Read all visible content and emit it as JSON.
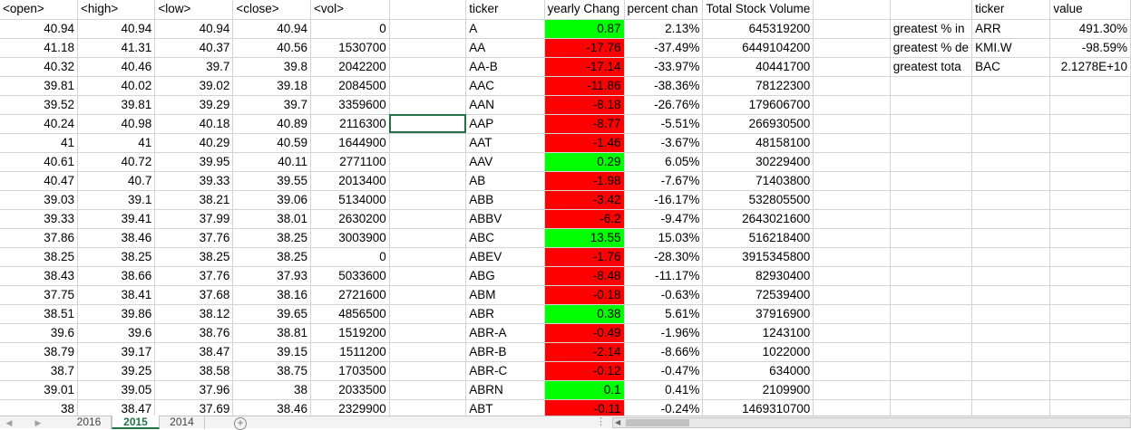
{
  "app": "Spreadsheet",
  "columns": [
    "<open>",
    "<high>",
    "<low>",
    "<close>",
    "<vol>",
    "",
    "ticker",
    "yearly Chang",
    "percent chan",
    "Total Stock Volume",
    "",
    "",
    "ticker",
    "value"
  ],
  "rows": [
    [
      "40.94",
      "40.94",
      "40.94",
      "40.94",
      "0",
      "",
      "A",
      "0.87",
      "2.13%",
      "645319200",
      "",
      "greatest % in",
      "ARR",
      "491.30%"
    ],
    [
      "41.18",
      "41.31",
      "40.37",
      "40.56",
      "1530700",
      "",
      "AA",
      "-17.76",
      "-37.49%",
      "6449104200",
      "",
      "greatest % de",
      "KMI.W",
      "-98.59%"
    ],
    [
      "40.32",
      "40.46",
      "39.7",
      "39.8",
      "2042200",
      "",
      "AA-B",
      "-17.14",
      "-33.97%",
      "40441700",
      "",
      "greatest tota",
      "BAC",
      "2.1278E+10"
    ],
    [
      "39.81",
      "40.02",
      "39.02",
      "39.18",
      "2084500",
      "",
      "AAC",
      "-11.86",
      "-38.36%",
      "78122300",
      "",
      "",
      "",
      ""
    ],
    [
      "39.52",
      "39.81",
      "39.29",
      "39.7",
      "3359600",
      "",
      "AAN",
      "-8.18",
      "-26.76%",
      "179606700",
      "",
      "",
      "",
      ""
    ],
    [
      "40.24",
      "40.98",
      "40.18",
      "40.89",
      "2116300",
      "",
      "AAP",
      "-8.77",
      "-5.51%",
      "266930500",
      "",
      "",
      "",
      ""
    ],
    [
      "41",
      "41",
      "40.29",
      "40.59",
      "1644900",
      "",
      "AAT",
      "-1.46",
      "-3.67%",
      "48158100",
      "",
      "",
      "",
      ""
    ],
    [
      "40.61",
      "40.72",
      "39.95",
      "40.11",
      "2771100",
      "",
      "AAV",
      "0.29",
      "6.05%",
      "30229400",
      "",
      "",
      "",
      ""
    ],
    [
      "40.47",
      "40.7",
      "39.33",
      "39.55",
      "2013400",
      "",
      "AB",
      "-1.98",
      "-7.67%",
      "71403800",
      "",
      "",
      "",
      ""
    ],
    [
      "39.03",
      "39.1",
      "38.21",
      "39.06",
      "5134000",
      "",
      "ABB",
      "-3.42",
      "-16.17%",
      "532805500",
      "",
      "",
      "",
      ""
    ],
    [
      "39.33",
      "39.41",
      "37.99",
      "38.01",
      "2630200",
      "",
      "ABBV",
      "-6.2",
      "-9.47%",
      "2643021600",
      "",
      "",
      "",
      ""
    ],
    [
      "37.86",
      "38.46",
      "37.76",
      "38.25",
      "3003900",
      "",
      "ABC",
      "13.55",
      "15.03%",
      "516218400",
      "",
      "",
      "",
      ""
    ],
    [
      "38.25",
      "38.25",
      "38.25",
      "38.25",
      "0",
      "",
      "ABEV",
      "-1.76",
      "-28.30%",
      "3915345800",
      "",
      "",
      "",
      ""
    ],
    [
      "38.43",
      "38.66",
      "37.76",
      "37.93",
      "5033600",
      "",
      "ABG",
      "-8.48",
      "-11.17%",
      "82930400",
      "",
      "",
      "",
      ""
    ],
    [
      "37.75",
      "38.41",
      "37.68",
      "38.16",
      "2721600",
      "",
      "ABM",
      "-0.18",
      "-0.63%",
      "72539400",
      "",
      "",
      "",
      ""
    ],
    [
      "38.51",
      "39.86",
      "38.12",
      "39.65",
      "4856500",
      "",
      "ABR",
      "0.38",
      "5.61%",
      "37916900",
      "",
      "",
      "",
      ""
    ],
    [
      "39.6",
      "39.6",
      "38.76",
      "38.81",
      "1519200",
      "",
      "ABR-A",
      "-0.49",
      "-1.96%",
      "1243100",
      "",
      "",
      "",
      ""
    ],
    [
      "38.79",
      "39.17",
      "38.47",
      "39.15",
      "1511200",
      "",
      "ABR-B",
      "-2.14",
      "-8.66%",
      "1022000",
      "",
      "",
      "",
      ""
    ],
    [
      "38.7",
      "39.25",
      "38.58",
      "38.75",
      "1703500",
      "",
      "ABR-C",
      "-0.12",
      "-0.47%",
      "634000",
      "",
      "",
      "",
      ""
    ],
    [
      "39.01",
      "39.05",
      "37.96",
      "38",
      "2033500",
      "",
      "ABRN",
      "0.1",
      "0.41%",
      "2109900",
      "",
      "",
      "",
      ""
    ],
    [
      "38",
      "38.47",
      "37.69",
      "38.46",
      "2329900",
      "",
      "ABT",
      "-0.11",
      "-0.24%",
      "1469310700",
      "",
      "",
      "",
      ""
    ]
  ],
  "colors": {
    "positive": "#00ff00",
    "negative": "#ff0000",
    "accent": "#217346"
  },
  "sheets": [
    "2016",
    "2015",
    "2014"
  ],
  "active_sheet": "2015",
  "icons": {
    "add_sheet": "plus-circle-icon",
    "tab_overflow": "more-dots-icon"
  },
  "add_sheet_glyph": "+",
  "tab_overflow_glyph": "⋮"
}
